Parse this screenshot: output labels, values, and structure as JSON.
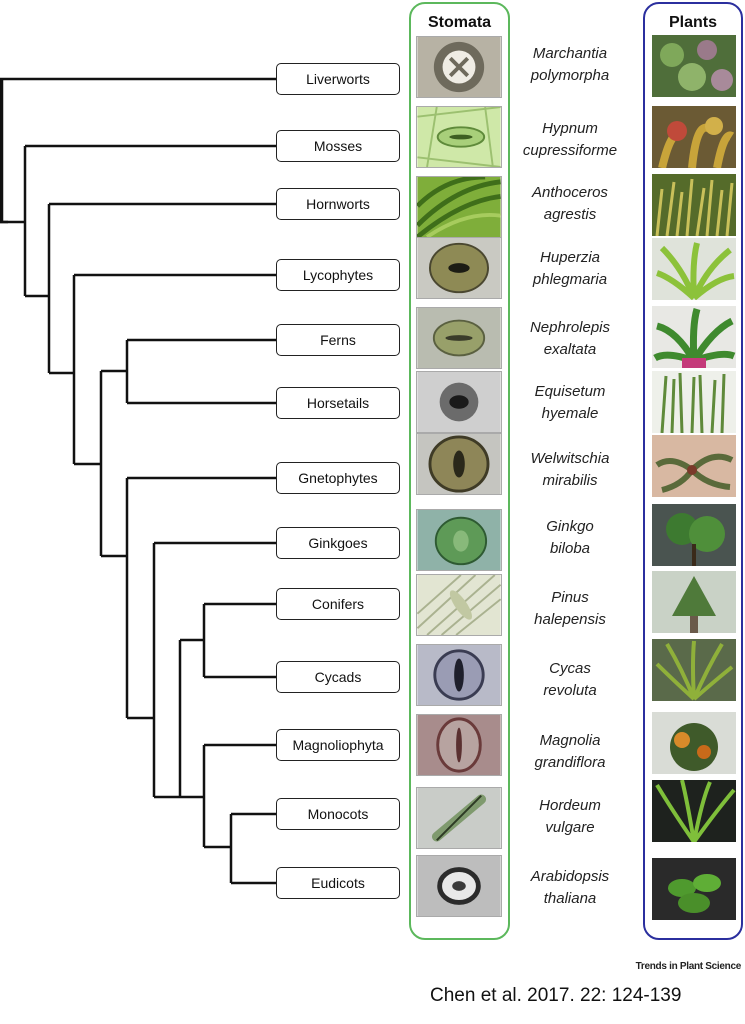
{
  "panels": {
    "stomata_title": "Stomata",
    "plants_title": "Plants",
    "stomata_border_color": "#5cb85c",
    "plants_border_color": "#2b2f9e"
  },
  "rows": [
    {
      "taxon": "Liverworts",
      "genus": "Marchantia",
      "species": "polymorpha"
    },
    {
      "taxon": "Mosses",
      "genus": "Hypnum",
      "species": "cupressiforme"
    },
    {
      "taxon": "Hornworts",
      "genus": "Anthoceros",
      "species": "agrestis"
    },
    {
      "taxon": "Lycophytes",
      "genus": "Huperzia",
      "species": "phlegmaria"
    },
    {
      "taxon": "Ferns",
      "genus": "Nephrolepis",
      "species": "exaltata"
    },
    {
      "taxon": "Horsetails",
      "genus": "Equisetum",
      "species": "hyemale"
    },
    {
      "taxon": "Gnetophytes",
      "genus": "Welwitschia",
      "species": "mirabilis"
    },
    {
      "taxon": "Ginkgoes",
      "genus": "Ginkgo",
      "species": "biloba"
    },
    {
      "taxon": "Conifers",
      "genus": "Pinus",
      "species": "halepensis"
    },
    {
      "taxon": "Cycads",
      "genus": "Cycas",
      "species": "revoluta"
    },
    {
      "taxon": "Magnoliophyta",
      "genus": "Magnolia",
      "species": "grandiflora"
    },
    {
      "taxon": "Monocots",
      "genus": "Hordeum",
      "species": "vulgare"
    },
    {
      "taxon": "Eudicots",
      "genus": "Arabidopsis",
      "species": "thaliana"
    }
  ],
  "footer": {
    "journal": "Trends in Plant Science",
    "citation": "Chen et al. 2017. 22: 124-139"
  }
}
